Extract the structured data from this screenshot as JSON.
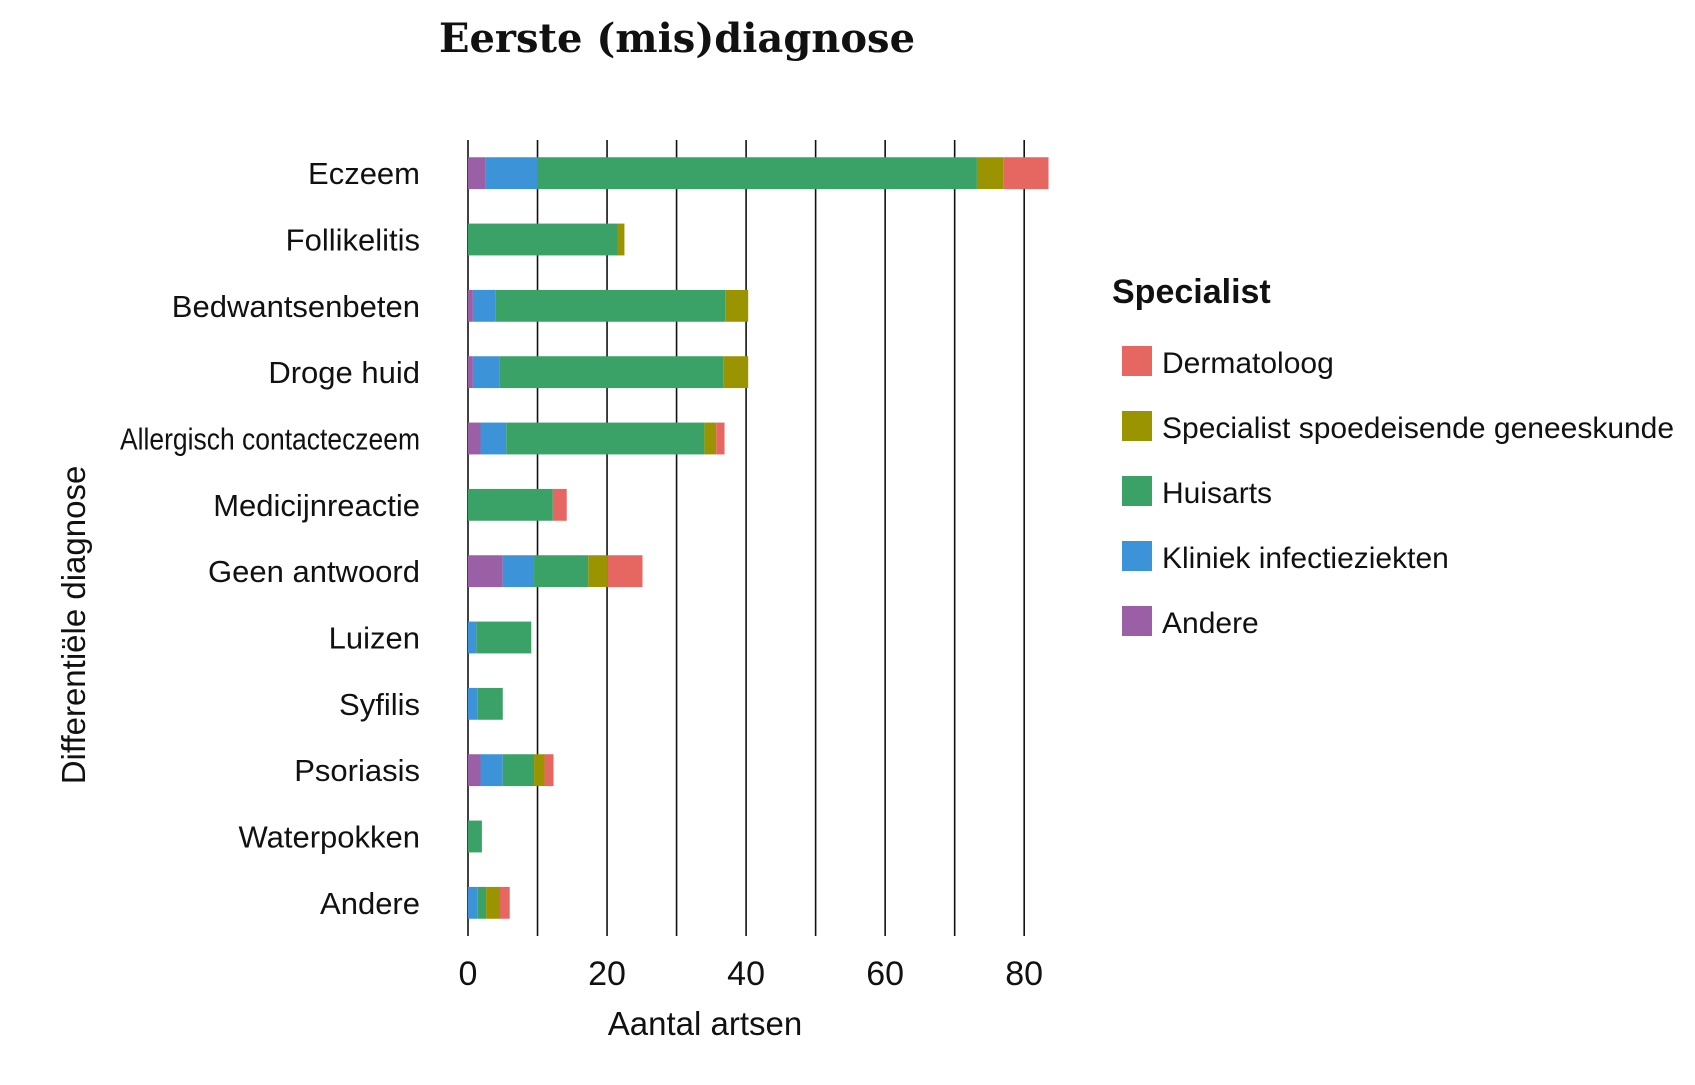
{
  "chart_data": {
    "type": "bar",
    "orientation": "horizontal",
    "stacked": true,
    "title": "Eerste (mis)diagnose",
    "xlabel": "Aantal artsen",
    "ylabel": "Differentiële diagnose",
    "xlim": [
      0,
      84
    ],
    "xticks": [
      0,
      20,
      40,
      60,
      80
    ],
    "gridlines": [
      0,
      10,
      20,
      30,
      40,
      50,
      60,
      70,
      80
    ],
    "grid": "vertical",
    "legend": {
      "title": "Specialist",
      "position": "right"
    },
    "categories": [
      "Eczeem",
      "Follikelitis",
      "Bedwantsenbeten",
      "Droge huid",
      "Allergisch contacteczeem",
      "Medicijnreactie",
      "Geen antwoord",
      "Luizen",
      "Syfilis",
      "Psoriasis",
      "Waterpokken",
      "Andere"
    ],
    "series": [
      {
        "name": "Andere",
        "color": "#9b5fa5",
        "values": [
          2.5,
          0,
          0.7,
          0.7,
          1.8,
          0,
          5,
          0,
          0,
          1.8,
          0,
          0
        ]
      },
      {
        "name": "Kliniek infectieziekten",
        "color": "#3d93d8",
        "values": [
          7.5,
          0,
          3.3,
          3.8,
          3.7,
          0,
          4.5,
          1.2,
          1.4,
          3.2,
          0,
          1.4
        ]
      },
      {
        "name": "Huisarts",
        "color": "#3aa267",
        "values": [
          63.2,
          21.5,
          33,
          32.2,
          28.5,
          12.2,
          7.8,
          7.9,
          3.6,
          4.5,
          2,
          1.2
        ]
      },
      {
        "name": "Specialist spoedeisende geneeskunde",
        "color": "#9a9400",
        "values": [
          3.8,
          1,
          3.3,
          3.6,
          1.7,
          0,
          2.8,
          0,
          0,
          1.5,
          0,
          2
        ]
      },
      {
        "name": "Dermatoloog",
        "color": "#e66662",
        "values": [
          6.5,
          0,
          0,
          0,
          1.2,
          2,
          5,
          0,
          0,
          1.3,
          0,
          1.4
        ]
      }
    ],
    "legend_order": [
      "Dermatoloog",
      "Specialist spoedeisende geneeskunde",
      "Huisarts",
      "Kliniek infectieziekten",
      "Andere"
    ]
  }
}
